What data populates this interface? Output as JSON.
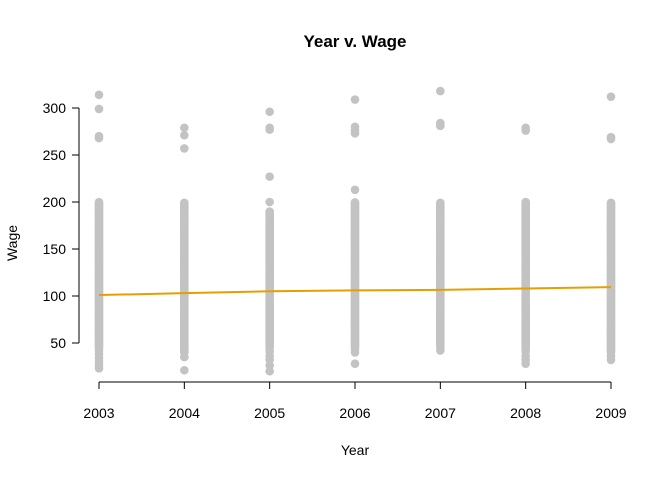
{
  "chart_data": {
    "type": "scatter",
    "title": "Year v. Wage",
    "xlabel": "Year",
    "ylabel": "Wage",
    "x_ticks": [
      2003,
      2004,
      2005,
      2006,
      2007,
      2008,
      2009
    ],
    "y_ticks": [
      50,
      100,
      150,
      200,
      250,
      300
    ],
    "xlim": [
      2003,
      2009
    ],
    "ylim": [
      20,
      320
    ],
    "grid": false,
    "point_color": "#c3c3c3",
    "line_color": "#e69f00",
    "series": [
      {
        "type": "scatter",
        "points": [
          {
            "x": 2003,
            "lows": [
              23,
              26,
              30,
              34,
              38,
              42
            ],
            "dense": [
              45,
              200
            ],
            "highs": [
              268,
              270,
              299,
              314
            ]
          },
          {
            "x": 2004,
            "lows": [
              21,
              35,
              40
            ],
            "dense": [
              42,
              200
            ],
            "highs": [
              257,
              271,
              279
            ]
          },
          {
            "x": 2005,
            "lows": [
              20,
              26,
              32,
              36,
              41,
              45
            ],
            "dense": [
              47,
              190
            ],
            "highs": [
              200,
              227,
              277,
              279,
              296
            ]
          },
          {
            "x": 2006,
            "lows": [
              28,
              40,
              44
            ],
            "dense": [
              46,
              200
            ],
            "highs": [
              213,
              273,
              276,
              280,
              309
            ]
          },
          {
            "x": 2007,
            "lows": [
              42,
              46
            ],
            "dense": [
              48,
              200
            ],
            "highs": [
              281,
              284,
              318
            ]
          },
          {
            "x": 2008,
            "lows": [
              28,
              32,
              36,
              41
            ],
            "dense": [
              44,
              200
            ],
            "highs": [
              276,
              279
            ]
          },
          {
            "x": 2009,
            "lows": [
              32,
              36,
              40
            ],
            "dense": [
              42,
              200
            ],
            "highs": [
              267,
              269,
              312
            ]
          }
        ]
      },
      {
        "type": "line",
        "x": [
          2003,
          2004,
          2005,
          2006,
          2007,
          2008,
          2009
        ],
        "y": [
          101,
          103,
          105,
          106,
          106.5,
          108,
          109.5
        ]
      }
    ]
  }
}
